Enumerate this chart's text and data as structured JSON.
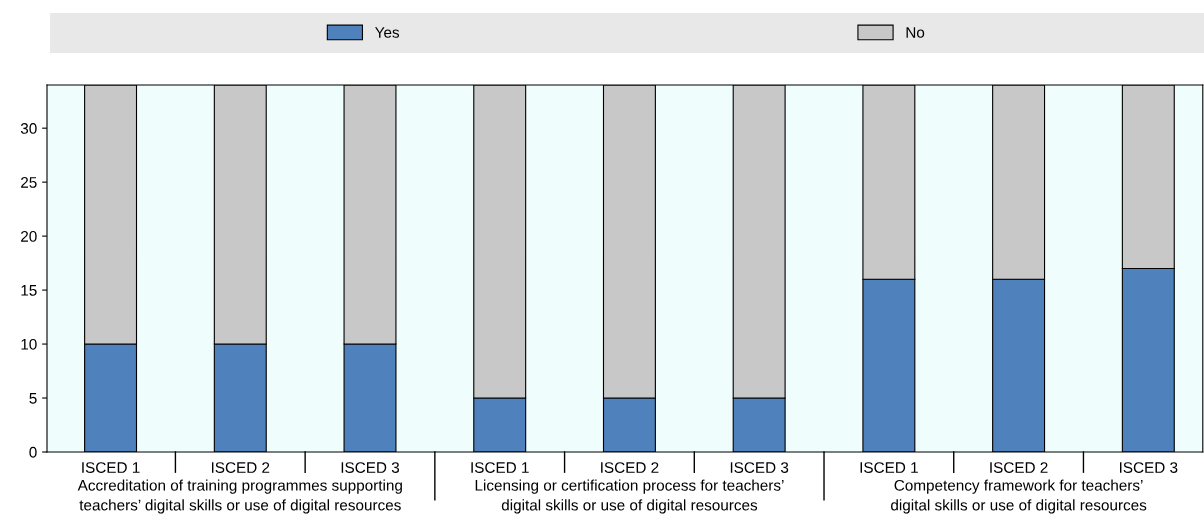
{
  "chart_data": {
    "type": "bar",
    "stacked": true,
    "legend": "top",
    "grid": false,
    "categories": [
      "ISCED 1",
      "ISCED 2",
      "ISCED 3",
      "ISCED 1",
      "ISCED 2",
      "ISCED 3",
      "ISCED 1",
      "ISCED 2",
      "ISCED 3"
    ],
    "series": [
      {
        "name": "Yes",
        "color": "#4f81bd",
        "values": [
          10,
          10,
          10,
          5,
          5,
          5,
          16,
          16,
          17
        ]
      },
      {
        "name": "No",
        "color": "#c8c8c8",
        "values": [
          24,
          24,
          24,
          29,
          29,
          29,
          18,
          18,
          17
        ]
      }
    ],
    "ylim": [
      0,
      34
    ],
    "yticks": [
      0,
      5,
      10,
      15,
      20,
      25,
      30
    ],
    "annotations": [
      "Accreditation of training programmes supporting\nteachers’ digital skills or use of digital resources",
      "Licensing or certification process for teachers’\ndigital skills or use of digital resources",
      "Competency framework for teachers’\ndigital skills or use of digital resources"
    ]
  }
}
